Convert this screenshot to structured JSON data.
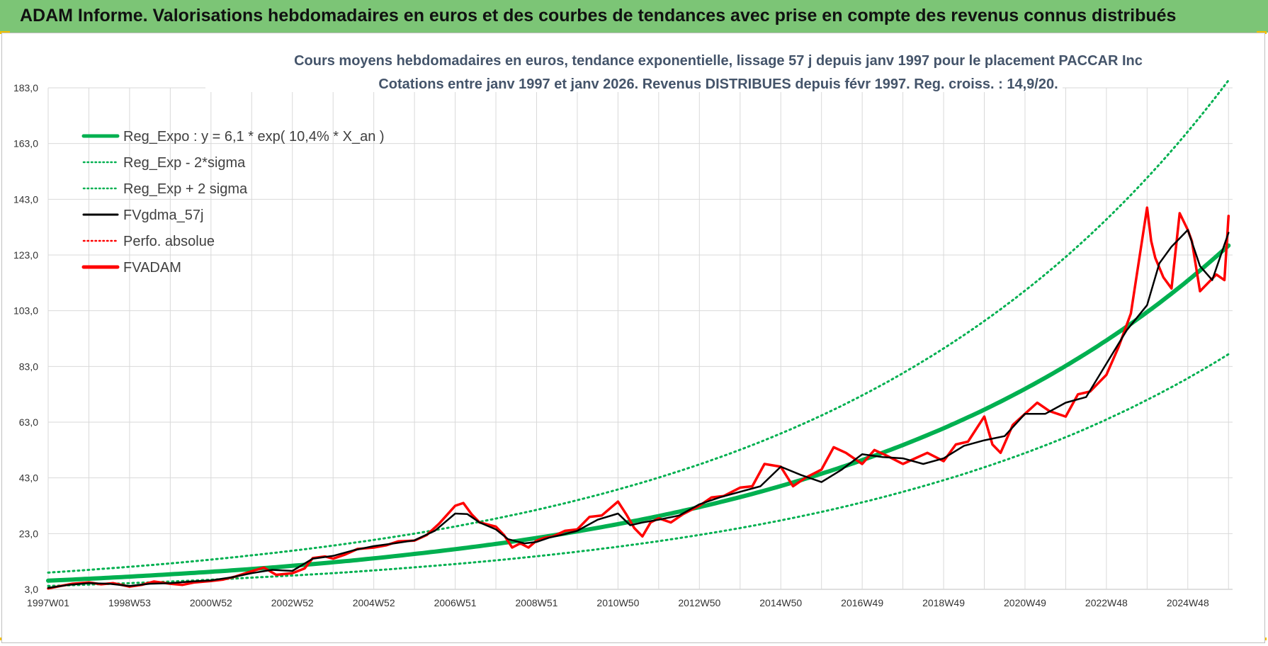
{
  "header": {
    "title": "ADAM Informe. Valorisations hebdomadaires en euros et des courbes de tendances avec prise en compte des revenus connus distribués"
  },
  "colors": {
    "header_bg": "#7cc576",
    "green": "#00b050",
    "red": "#ff0000",
    "black": "#000000",
    "grid": "#d9d9d9",
    "title": "#44546a"
  },
  "chart_data": {
    "type": "line",
    "title": "Cours moyens hebdomadaires en euros, tendance exponentielle, lissage 57 j depuis janv 1997 pour le placement PACCAR Inc",
    "subtitle": "Cotations entre janv 1997 et janv 2026. Revenus DISTRIBUES depuis févr 1997. Reg. croiss. : 14,9/20.",
    "xlabel": "",
    "ylabel": "",
    "x_range": [
      1997.0,
      2026.1
    ],
    "ylim": [
      3,
      183
    ],
    "y_ticks": [
      3,
      23,
      43,
      63,
      83,
      103,
      123,
      143,
      163,
      183
    ],
    "y_tick_labels": [
      "3,0",
      "23,0",
      "43,0",
      "63,0",
      "83,0",
      "103,0",
      "123,0",
      "143,0",
      "163,0",
      "183,0"
    ],
    "x_ticks": [
      {
        "label": "1997W01",
        "x": 1997.0
      },
      {
        "label": "1998W53",
        "x": 1999.0
      },
      {
        "label": "2000W52",
        "x": 2001.0
      },
      {
        "label": "2002W52",
        "x": 2003.0
      },
      {
        "label": "2004W52",
        "x": 2005.0
      },
      {
        "label": "2006W51",
        "x": 2007.0
      },
      {
        "label": "2008W51",
        "x": 2009.0
      },
      {
        "label": "2010W50",
        "x": 2011.0
      },
      {
        "label": "2012W50",
        "x": 2013.0
      },
      {
        "label": "2014W50",
        "x": 2015.0
      },
      {
        "label": "2016W49",
        "x": 2017.0
      },
      {
        "label": "2018W49",
        "x": 2019.0
      },
      {
        "label": "2020W49",
        "x": 2021.0
      },
      {
        "label": "2022W48",
        "x": 2023.0
      },
      {
        "label": "2024W48",
        "x": 2025.0
      }
    ],
    "grid": true,
    "legend_position": "top-left",
    "legend": [
      {
        "name": "Reg_Expo : y = 6,1 * exp( 10,4% *  X_an )",
        "color": "#00b050",
        "style": "solid-thick"
      },
      {
        "name": "Reg_Exp - 2*sigma",
        "color": "#00b050",
        "style": "dotted"
      },
      {
        "name": "Reg_Exp + 2 sigma",
        "color": "#00b050",
        "style": "dotted"
      },
      {
        "name": "FVgdma_57j",
        "color": "#000000",
        "style": "solid"
      },
      {
        "name": "Perfo. absolue",
        "color": "#ff0000",
        "style": "dotted"
      },
      {
        "name": "FVADAM",
        "color": "#ff0000",
        "style": "solid-thick"
      }
    ],
    "series": [
      {
        "name": "Reg_Expo",
        "x": [
          1997,
          1998,
          2000,
          2002,
          2004,
          2006,
          2008,
          2010,
          2012,
          2014,
          2016,
          2018,
          2020,
          2022,
          2024,
          2026
        ],
        "values": [
          6.1,
          6.8,
          8.4,
          10.3,
          12.7,
          15.7,
          19.3,
          23.8,
          29.3,
          36.1,
          44.5,
          54.8,
          67.5,
          83.2,
          102.5,
          126.4
        ]
      },
      {
        "name": "Reg_Exp - 2*sigma",
        "x": [
          1997,
          1998,
          2000,
          2002,
          2004,
          2006,
          2008,
          2010,
          2012,
          2014,
          2016,
          2018,
          2020,
          2022,
          2024,
          2026
        ],
        "values": [
          4.2,
          4.7,
          5.8,
          7.2,
          8.8,
          10.9,
          13.4,
          16.5,
          20.3,
          25.0,
          30.8,
          38.0,
          46.8,
          57.6,
          71.0,
          87.4
        ]
      },
      {
        "name": "Reg_Exp + 2 sigma",
        "x": [
          1997,
          1998,
          2000,
          2002,
          2004,
          2006,
          2008,
          2010,
          2012,
          2014,
          2016,
          2018,
          2020,
          2022,
          2024,
          2026
        ],
        "values": [
          9.0,
          10.0,
          12.3,
          15.2,
          18.7,
          23.0,
          28.4,
          35.0,
          43.1,
          53.1,
          65.4,
          80.6,
          99.3,
          122.3,
          150.7,
          185.7
        ]
      },
      {
        "name": "FVgdma_57j",
        "x": [
          1997.0,
          1997.5,
          1998.0,
          1998.5,
          1999.0,
          1999.5,
          2000.0,
          2000.5,
          2001.0,
          2001.5,
          2002.0,
          2002.5,
          2003.0,
          2003.5,
          2004.0,
          2004.5,
          2005.0,
          2005.5,
          2006.0,
          2006.5,
          2007.0,
          2007.3,
          2007.6,
          2008.0,
          2008.3,
          2008.7,
          2009.0,
          2009.3,
          2009.6,
          2010.0,
          2010.5,
          2011.0,
          2011.3,
          2011.6,
          2012.0,
          2012.5,
          2013.0,
          2013.5,
          2014.0,
          2014.5,
          2015.0,
          2015.5,
          2016.0,
          2016.5,
          2017.0,
          2017.5,
          2018.0,
          2018.5,
          2019.0,
          2019.5,
          2020.0,
          2020.5,
          2021.0,
          2021.5,
          2022.0,
          2022.5,
          2023.0,
          2023.5,
          2024.0,
          2024.3,
          2024.6,
          2025.0,
          2025.3,
          2025.6,
          2026.0
        ],
        "values": [
          3.5,
          4.6,
          5.2,
          5.0,
          4.2,
          5.0,
          5.2,
          5.8,
          6.2,
          7.3,
          8.8,
          10.0,
          9.6,
          14.0,
          15.0,
          17.0,
          18.5,
          19.5,
          20.6,
          24.0,
          30.2,
          30.0,
          27.0,
          24.5,
          21.0,
          19.5,
          20.0,
          21.5,
          22.5,
          24.0,
          28.0,
          30.2,
          26.0,
          27.0,
          28.0,
          29.5,
          33.5,
          36.0,
          38.0,
          40.0,
          47.0,
          44.0,
          41.5,
          46.0,
          51.5,
          50.5,
          50.0,
          48.0,
          50.0,
          54.5,
          56.5,
          58.0,
          66.0,
          66.0,
          70.0,
          72.0,
          84.0,
          96.0,
          105.0,
          120.0,
          126.0,
          132.0,
          119.0,
          114.0,
          131.0
        ]
      },
      {
        "name": "FVADAM",
        "x": [
          1997.0,
          1997.3,
          1997.6,
          1998.0,
          1998.3,
          1998.6,
          1999.0,
          1999.3,
          1999.6,
          2000.0,
          2000.3,
          2000.6,
          2001.0,
          2001.3,
          2001.6,
          2002.0,
          2002.3,
          2002.6,
          2003.0,
          2003.3,
          2003.5,
          2003.8,
          2004.0,
          2004.3,
          2004.6,
          2005.0,
          2005.3,
          2005.6,
          2006.0,
          2006.3,
          2006.6,
          2007.0,
          2007.2,
          2007.4,
          2007.6,
          2008.0,
          2008.2,
          2008.4,
          2008.6,
          2008.8,
          2009.0,
          2009.2,
          2009.4,
          2009.7,
          2010.0,
          2010.3,
          2010.6,
          2011.0,
          2011.2,
          2011.4,
          2011.6,
          2011.8,
          2012.0,
          2012.3,
          2012.6,
          2013.0,
          2013.3,
          2013.6,
          2014.0,
          2014.3,
          2014.6,
          2015.0,
          2015.3,
          2015.6,
          2016.0,
          2016.3,
          2016.6,
          2017.0,
          2017.3,
          2017.6,
          2018.0,
          2018.3,
          2018.6,
          2019.0,
          2019.3,
          2019.6,
          2020.0,
          2020.2,
          2020.4,
          2020.7,
          2021.0,
          2021.3,
          2021.6,
          2022.0,
          2022.3,
          2022.6,
          2023.0,
          2023.3,
          2023.6,
          2024.0,
          2024.1,
          2024.2,
          2024.4,
          2024.6,
          2024.8,
          2025.0,
          2025.1,
          2025.3,
          2025.5,
          2025.7,
          2025.9,
          2026.0
        ],
        "values": [
          3.3,
          4.2,
          5.0,
          5.5,
          4.8,
          5.2,
          4.0,
          4.6,
          5.8,
          5.0,
          4.6,
          5.5,
          6.0,
          6.5,
          7.6,
          9.5,
          10.8,
          8.2,
          8.8,
          10.5,
          14.2,
          14.8,
          14.0,
          15.5,
          17.5,
          18.0,
          18.8,
          20.2,
          20.5,
          22.5,
          26.5,
          33.0,
          34.0,
          30.0,
          27.0,
          25.5,
          22.5,
          18.0,
          19.5,
          18.0,
          20.5,
          21.5,
          22.0,
          24.0,
          24.5,
          29.0,
          29.5,
          34.5,
          30.0,
          25.0,
          22.0,
          27.0,
          28.5,
          27.0,
          30.0,
          33.0,
          36.0,
          36.5,
          39.5,
          40.0,
          48.0,
          47.0,
          40.0,
          43.0,
          46.0,
          54.0,
          52.0,
          48.0,
          53.0,
          51.0,
          48.0,
          50.0,
          52.0,
          49.0,
          55.0,
          56.0,
          65.0,
          55.0,
          52.0,
          62.0,
          66.0,
          70.0,
          67.0,
          65.0,
          73.0,
          74.0,
          80.0,
          90.0,
          102.0,
          140.0,
          128.0,
          122.0,
          115.0,
          111.0,
          138.0,
          132.0,
          128.0,
          110.0,
          113.0,
          116.0,
          114.0,
          137.0
        ]
      }
    ]
  }
}
